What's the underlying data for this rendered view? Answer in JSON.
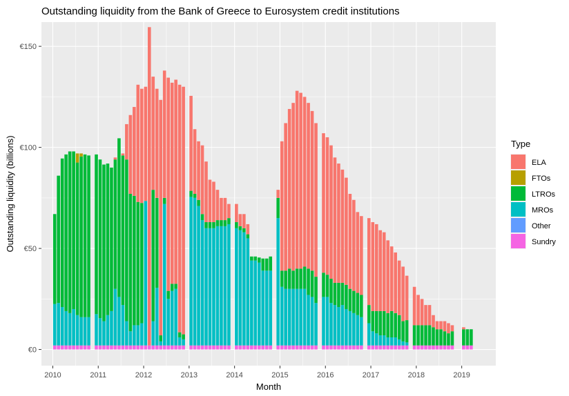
{
  "chart_data": {
    "type": "bar",
    "stacked": true,
    "title": "Outstanding liquidity from the Bank of Greece to Eurosystem credit institutions",
    "xlabel": "Month",
    "ylabel": "Outstanding liquidity (billions)",
    "x_ticks": [
      "2010",
      "2011",
      "2012",
      "2013",
      "2014",
      "2015",
      "2016",
      "2017",
      "2018",
      "2019"
    ],
    "y_ticks": [
      {
        "value": 0,
        "label": "€0"
      },
      {
        "value": 50,
        "label": "€50"
      },
      {
        "value": 100,
        "label": "€100"
      },
      {
        "value": 150,
        "label": "€150"
      }
    ],
    "xlim": [
      "2009-10",
      "2019-10"
    ],
    "ylim": [
      -8,
      162
    ],
    "grid": true,
    "legend_position": "right",
    "legend_title": "Type",
    "series_order": [
      "Sundry",
      "Other",
      "MROs",
      "LTROs",
      "FTOs",
      "ELA"
    ],
    "series": [
      {
        "name": "ELA",
        "color": "#F8766D"
      },
      {
        "name": "FTOs",
        "color": "#B79F00"
      },
      {
        "name": "LTROs",
        "color": "#00BA38"
      },
      {
        "name": "MROs",
        "color": "#00BFC4"
      },
      {
        "name": "Other",
        "color": "#619CFF"
      },
      {
        "name": "Sundry",
        "color": "#F564E3"
      }
    ],
    "bars": [
      {
        "month": "2010-01",
        "Sundry": 2,
        "MROs": 20.5,
        "LTROs": 44.5
      },
      {
        "month": "2010-02",
        "Sundry": 2,
        "MROs": 21,
        "LTROs": 63
      },
      {
        "month": "2010-03",
        "Sundry": 2,
        "MROs": 19,
        "LTROs": 73.5
      },
      {
        "month": "2010-04",
        "Sundry": 2,
        "MROs": 17,
        "LTROs": 77.5
      },
      {
        "month": "2010-05",
        "Sundry": 2,
        "MROs": 16,
        "LTROs": 80
      },
      {
        "month": "2010-06",
        "Sundry": 2,
        "MROs": 18,
        "LTROs": 78
      },
      {
        "month": "2010-07",
        "Sundry": 2,
        "MROs": 15,
        "LTROs": 75.5,
        "FTOs": 4.5
      },
      {
        "month": "2010-08",
        "Sundry": 2,
        "MROs": 14,
        "LTROs": 79.5,
        "FTOs": 1.5
      },
      {
        "month": "2010-09",
        "Sundry": 2,
        "MROs": 14,
        "LTROs": 80.5
      },
      {
        "month": "2010-10",
        "Sundry": 2,
        "MROs": 14,
        "LTROs": 80
      },
      {
        "month": "2010-12",
        "Sundry": 2,
        "MROs": 15.5,
        "LTROs": 79
      },
      {
        "month": "2011-01",
        "Sundry": 2,
        "MROs": 13.5,
        "LTROs": 78.5
      },
      {
        "month": "2011-02",
        "Sundry": 2,
        "MROs": 12,
        "LTROs": 77.5
      },
      {
        "month": "2011-03",
        "Sundry": 2,
        "MROs": 15,
        "LTROs": 75
      },
      {
        "month": "2011-04",
        "Sundry": 2,
        "MROs": 17,
        "LTROs": 71
      },
      {
        "month": "2011-05",
        "Sundry": 2,
        "MROs": 28,
        "LTROs": 64,
        "ELA": 1
      },
      {
        "month": "2011-06",
        "Sundry": 2,
        "MROs": 24,
        "LTROs": 78.5
      },
      {
        "month": "2011-07",
        "Sundry": 2,
        "MROs": 20,
        "LTROs": 74,
        "ELA": 1
      },
      {
        "month": "2011-08",
        "Sundry": 2,
        "MROs": 12,
        "LTROs": 80,
        "ELA": 17.5
      },
      {
        "month": "2011-09",
        "Sundry": 2,
        "MROs": 7,
        "LTROs": 68,
        "ELA": 39
      },
      {
        "month": "2011-10",
        "Sundry": 2,
        "MROs": 10,
        "LTROs": 64,
        "ELA": 44
      },
      {
        "month": "2011-11",
        "Sundry": 2,
        "MROs": 10,
        "LTROs": 61,
        "ELA": 58
      },
      {
        "month": "2011-12",
        "Sundry": 2,
        "MROs": 11,
        "LTROs": 59.5,
        "ELA": 56.5
      },
      {
        "month": "2012-01",
        "Sundry": 2,
        "MROs": 71.5,
        "ELA": 56.5
      },
      {
        "month": "2012-02",
        "Sundry": 2,
        "ELA": 157.5
      },
      {
        "month": "2012-03",
        "Sundry": 2,
        "MROs": 12,
        "LTROs": 65,
        "ELA": 56
      },
      {
        "month": "2012-04",
        "Sundry": 2,
        "MROs": 28.5,
        "LTROs": 44.5,
        "ELA": 54
      },
      {
        "month": "2012-05",
        "Sundry": 2,
        "MROs": 2,
        "LTROs": 3,
        "ELA": 116.5
      },
      {
        "month": "2012-06",
        "Sundry": 2,
        "MROs": 70,
        "LTROs": 3,
        "ELA": 63
      },
      {
        "month": "2012-07",
        "Sundry": 2,
        "MROs": 23,
        "LTROs": 4,
        "ELA": 105.5
      },
      {
        "month": "2012-08",
        "Sundry": 2,
        "MROs": 27,
        "LTROs": 3.5,
        "ELA": 99.5
      },
      {
        "month": "2012-09",
        "Sundry": 2,
        "MROs": 28,
        "LTROs": 2.5,
        "ELA": 101
      },
      {
        "month": "2012-10",
        "Sundry": 2,
        "MROs": 4,
        "LTROs": 2.5,
        "ELA": 122.5
      },
      {
        "month": "2012-11",
        "Sundry": 2,
        "MROs": 3,
        "LTROs": 2.5,
        "ELA": 122.5
      },
      {
        "month": "2013-01",
        "Sundry": 2,
        "MROs": 73.5,
        "LTROs": 3,
        "ELA": 47
      },
      {
        "month": "2013-02",
        "Sundry": 2,
        "MROs": 73,
        "LTROs": 2,
        "ELA": 32
      },
      {
        "month": "2013-03",
        "Sundry": 2,
        "MROs": 69,
        "LTROs": 3,
        "ELA": 29
      },
      {
        "month": "2013-04",
        "Sundry": 2,
        "MROs": 62,
        "LTROs": 3,
        "ELA": 34
      },
      {
        "month": "2013-05",
        "Sundry": 2,
        "MROs": 58,
        "LTROs": 3,
        "ELA": 30
      },
      {
        "month": "2013-06",
        "Sundry": 2,
        "MROs": 58,
        "LTROs": 3,
        "ELA": 21
      },
      {
        "month": "2013-07",
        "Sundry": 2,
        "MROs": 58,
        "LTROs": 3,
        "ELA": 20
      },
      {
        "month": "2013-08",
        "Sundry": 2,
        "MROs": 59,
        "LTROs": 3,
        "ELA": 15
      },
      {
        "month": "2013-09",
        "Sundry": 2,
        "MROs": 59,
        "LTROs": 3,
        "ELA": 11
      },
      {
        "month": "2013-10",
        "Sundry": 2,
        "MROs": 59,
        "LTROs": 3,
        "ELA": 11
      },
      {
        "month": "2013-11",
        "Sundry": 2,
        "MROs": 60,
        "LTROs": 3,
        "ELA": 7
      },
      {
        "month": "2014-01",
        "Sundry": 2,
        "MROs": 58,
        "LTROs": 3,
        "ELA": 9
      },
      {
        "month": "2014-02",
        "Sundry": 2,
        "MROs": 57,
        "LTROs": 2,
        "ELA": 6
      },
      {
        "month": "2014-03",
        "Sundry": 2,
        "MROs": 56,
        "LTROs": 2,
        "ELA": 7
      },
      {
        "month": "2014-04",
        "Sundry": 2,
        "MROs": 53,
        "LTROs": 2,
        "ELA": 5
      },
      {
        "month": "2014-05",
        "Sundry": 2,
        "MROs": 42,
        "LTROs": 2
      },
      {
        "month": "2014-06",
        "Sundry": 2,
        "MROs": 42,
        "LTROs": 2
      },
      {
        "month": "2014-07",
        "Sundry": 2,
        "MROs": 41,
        "LTROs": 2.5
      },
      {
        "month": "2014-08",
        "Sundry": 2,
        "MROs": 37,
        "LTROs": 6
      },
      {
        "month": "2014-09",
        "Sundry": 2,
        "MROs": 37,
        "LTROs": 6
      },
      {
        "month": "2014-10",
        "Sundry": 2,
        "MROs": 37,
        "LTROs": 7
      },
      {
        "month": "2014-12",
        "Sundry": 2,
        "MROs": 63,
        "LTROs": 10,
        "ELA": 4
      },
      {
        "month": "2015-01",
        "Sundry": 2,
        "MROs": 29,
        "LTROs": 8,
        "ELA": 64
      },
      {
        "month": "2015-02",
        "Sundry": 2,
        "MROs": 28,
        "LTROs": 9,
        "ELA": 73
      },
      {
        "month": "2015-03",
        "Sundry": 2,
        "MROs": 28,
        "LTROs": 10,
        "ELA": 79
      },
      {
        "month": "2015-04",
        "Sundry": 2,
        "MROs": 28,
        "LTROs": 9,
        "ELA": 83
      },
      {
        "month": "2015-05",
        "Sundry": 2,
        "MROs": 28,
        "LTROs": 10,
        "ELA": 88
      },
      {
        "month": "2015-06",
        "Sundry": 2,
        "MROs": 28,
        "LTROs": 10,
        "ELA": 87
      },
      {
        "month": "2015-07",
        "Sundry": 2,
        "MROs": 28,
        "LTROs": 11,
        "ELA": 84
      },
      {
        "month": "2015-08",
        "Sundry": 2,
        "MROs": 25,
        "LTROs": 13,
        "ELA": 82
      },
      {
        "month": "2015-09",
        "Sundry": 2,
        "MROs": 24,
        "LTROs": 13,
        "ELA": 79
      },
      {
        "month": "2015-10",
        "Sundry": 2,
        "MROs": 21,
        "LTROs": 13,
        "ELA": 76
      },
      {
        "month": "2015-12",
        "Sundry": 2,
        "MROs": 24,
        "LTROs": 12,
        "ELA": 69
      },
      {
        "month": "2016-01",
        "Sundry": 2,
        "MROs": 24,
        "LTROs": 11,
        "ELA": 68
      },
      {
        "month": "2016-02",
        "Sundry": 2,
        "MROs": 21,
        "LTROs": 12,
        "ELA": 66
      },
      {
        "month": "2016-03",
        "Sundry": 2,
        "MROs": 20,
        "LTROs": 11,
        "ELA": 62
      },
      {
        "month": "2016-04",
        "Sundry": 2,
        "MROs": 19,
        "LTROs": 12,
        "ELA": 59
      },
      {
        "month": "2016-05",
        "Sundry": 2,
        "MROs": 20,
        "LTROs": 11,
        "ELA": 56
      },
      {
        "month": "2016-06",
        "Sundry": 2,
        "MROs": 18,
        "LTROs": 12,
        "ELA": 53
      },
      {
        "month": "2016-07",
        "Sundry": 2,
        "MROs": 17,
        "LTROs": 11,
        "ELA": 47
      },
      {
        "month": "2016-08",
        "Sundry": 2,
        "MROs": 16,
        "LTROs": 11,
        "ELA": 45
      },
      {
        "month": "2016-09",
        "Sundry": 2,
        "MROs": 15,
        "LTROs": 11,
        "ELA": 40
      },
      {
        "month": "2016-10",
        "Sundry": 2,
        "MROs": 14,
        "LTROs": 11,
        "ELA": 39
      },
      {
        "month": "2016-12",
        "Sundry": 2,
        "MROs": 11,
        "LTROs": 9,
        "ELA": 43
      },
      {
        "month": "2017-01",
        "Sundry": 2,
        "MROs": 7,
        "LTROs": 10,
        "ELA": 44
      },
      {
        "month": "2017-02",
        "Sundry": 2,
        "MROs": 6,
        "LTROs": 11,
        "ELA": 43
      },
      {
        "month": "2017-03",
        "Sundry": 2,
        "MROs": 5,
        "LTROs": 12,
        "ELA": 40
      },
      {
        "month": "2017-04",
        "Sundry": 2,
        "MROs": 5,
        "LTROs": 12,
        "ELA": 39
      },
      {
        "month": "2017-05",
        "Sundry": 2,
        "MROs": 4,
        "LTROs": 12,
        "ELA": 36
      },
      {
        "month": "2017-06",
        "Sundry": 2,
        "MROs": 4,
        "LTROs": 13,
        "ELA": 32
      },
      {
        "month": "2017-07",
        "Sundry": 2,
        "MROs": 4,
        "LTROs": 12,
        "ELA": 30
      },
      {
        "month": "2017-08",
        "Sundry": 2,
        "MROs": 3,
        "LTROs": 12,
        "ELA": 27
      },
      {
        "month": "2017-09",
        "Sundry": 2,
        "MROs": 2,
        "LTROs": 10,
        "ELA": 27
      },
      {
        "month": "2017-10",
        "Sundry": 2,
        "MROs": 1.5,
        "LTROs": 11,
        "ELA": 22
      },
      {
        "month": "2017-12",
        "Sundry": 2,
        "LTROs": 10,
        "ELA": 19
      },
      {
        "month": "2018-01",
        "Sundry": 2,
        "LTROs": 10,
        "ELA": 15
      },
      {
        "month": "2018-02",
        "Sundry": 2,
        "LTROs": 10,
        "ELA": 13
      },
      {
        "month": "2018-03",
        "Sundry": 2,
        "LTROs": 10,
        "ELA": 10
      },
      {
        "month": "2018-04",
        "Sundry": 2,
        "LTROs": 10,
        "ELA": 10
      },
      {
        "month": "2018-05",
        "Sundry": 2,
        "LTROs": 9,
        "ELA": 6
      },
      {
        "month": "2018-06",
        "Sundry": 2,
        "LTROs": 8,
        "ELA": 4
      },
      {
        "month": "2018-07",
        "Sundry": 2,
        "LTROs": 8,
        "ELA": 4
      },
      {
        "month": "2018-08",
        "Sundry": 2,
        "LTROs": 7,
        "ELA": 5
      },
      {
        "month": "2018-09",
        "Sundry": 2,
        "LTROs": 6,
        "ELA": 5
      },
      {
        "month": "2018-10",
        "Sundry": 2,
        "LTROs": 7,
        "ELA": 3
      },
      {
        "month": "2019-01",
        "Sundry": 2,
        "LTROs": 8,
        "ELA": 1
      },
      {
        "month": "2019-02",
        "Sundry": 2,
        "LTROs": 8
      },
      {
        "month": "2019-03",
        "Sundry": 2,
        "LTROs": 8
      }
    ]
  }
}
